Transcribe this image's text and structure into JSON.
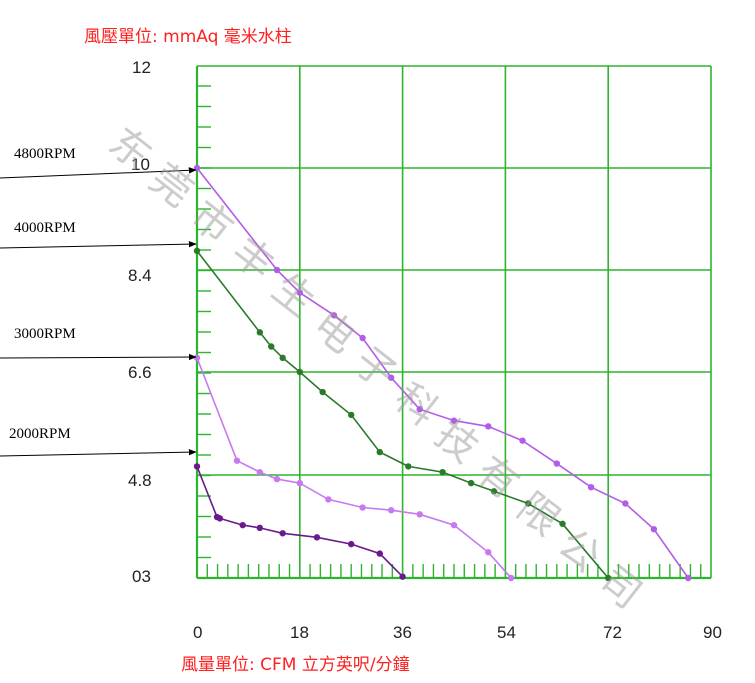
{
  "chart_data": {
    "type": "line",
    "ylabel": "風壓單位:  mmAq 毫米水柱",
    "xlabel": "風量單位:        CFM 立方英呎/分鐘",
    "x_ticks": [
      "0",
      "18",
      "36",
      "54",
      "72",
      "90"
    ],
    "y_ticks": [
      "03",
      "4.8",
      "6.6",
      "8.4",
      "10",
      "12"
    ],
    "xlim": [
      0,
      90
    ],
    "grid": true,
    "watermark": "东莞市丰生电子科技有限公司",
    "colors": {
      "grid": "#2db52d",
      "axis_labels": "#ff2020",
      "series_4800": "#b35ce8",
      "series_4000": "#2a7a2a",
      "series_3000": "#c77af0",
      "series_2000": "#6a1a8a"
    },
    "series": [
      {
        "name": "4800RPM",
        "color": "#b35ce8",
        "points": [
          [
            0,
            10.0
          ],
          [
            14,
            8.4
          ],
          [
            18,
            8.0
          ],
          [
            24,
            7.6
          ],
          [
            29,
            7.2
          ],
          [
            34,
            6.5
          ],
          [
            39,
            5.95
          ],
          [
            45,
            5.75
          ],
          [
            51,
            5.65
          ],
          [
            57,
            5.4
          ],
          [
            63,
            5.0
          ],
          [
            69,
            4.35
          ],
          [
            75,
            3.75
          ],
          [
            80,
            2.8
          ],
          [
            86,
            1.0
          ]
        ]
      },
      {
        "name": "4000RPM",
        "color": "#2a7a2a",
        "points": [
          [
            0,
            8.7
          ],
          [
            11,
            7.3
          ],
          [
            13,
            7.05
          ],
          [
            15,
            6.85
          ],
          [
            18,
            6.6
          ],
          [
            22,
            6.25
          ],
          [
            27,
            5.85
          ],
          [
            32,
            5.2
          ],
          [
            37,
            4.95
          ],
          [
            43,
            4.85
          ],
          [
            48,
            4.5
          ],
          [
            52,
            4.2
          ],
          [
            58,
            3.75
          ],
          [
            64,
            3.0
          ],
          [
            72,
            1.0
          ]
        ]
      },
      {
        "name": "3000RPM",
        "color": "#c77af0",
        "points": [
          [
            0,
            6.85
          ],
          [
            7,
            5.05
          ],
          [
            11,
            4.85
          ],
          [
            14,
            4.65
          ],
          [
            18,
            4.5
          ],
          [
            23,
            3.9
          ],
          [
            29,
            3.6
          ],
          [
            34,
            3.5
          ],
          [
            39,
            3.35
          ],
          [
            45,
            2.95
          ],
          [
            51,
            1.95
          ],
          [
            55,
            1.0
          ]
        ]
      },
      {
        "name": "2000RPM",
        "color": "#6a1a8a",
        "points": [
          [
            0,
            4.95
          ],
          [
            3.5,
            3.25
          ],
          [
            4,
            3.2
          ],
          [
            8,
            2.95
          ],
          [
            11,
            2.85
          ],
          [
            15,
            2.65
          ],
          [
            21,
            2.5
          ],
          [
            27,
            2.25
          ],
          [
            32,
            1.9
          ],
          [
            36,
            1.05
          ]
        ]
      }
    ]
  }
}
